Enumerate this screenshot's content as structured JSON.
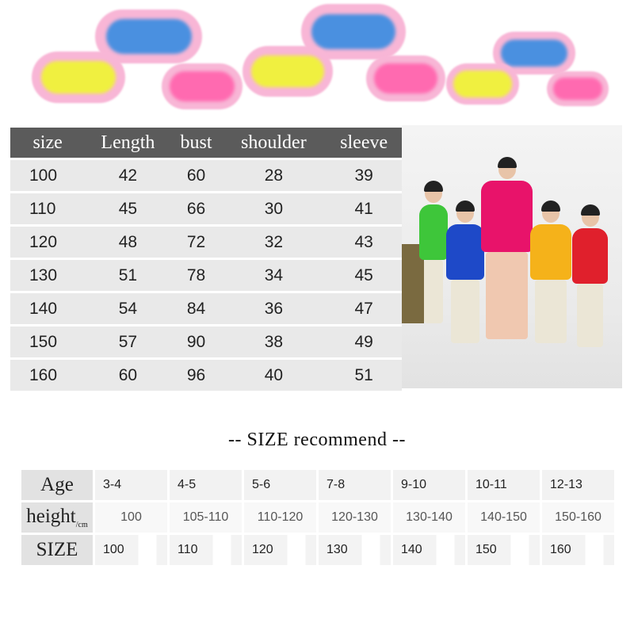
{
  "decor": {
    "clouds": [
      "#4a90e0",
      "#f0f040",
      "#ff6ab0"
    ],
    "halo": "#f8b6d6"
  },
  "size_table": {
    "headers": [
      "size",
      "Length",
      "bust",
      "shoulder",
      "sleeve"
    ],
    "rows": [
      [
        "100",
        "42",
        "60",
        "28",
        "39"
      ],
      [
        "110",
        "45",
        "66",
        "30",
        "41"
      ],
      [
        "120",
        "48",
        "72",
        "32",
        "43"
      ],
      [
        "130",
        "51",
        "78",
        "34",
        "45"
      ],
      [
        "140",
        "54",
        "84",
        "36",
        "47"
      ],
      [
        "150",
        "57",
        "90",
        "38",
        "49"
      ],
      [
        "160",
        "60",
        "96",
        "40",
        "51"
      ]
    ]
  },
  "recommend": {
    "title": "--  SIZE  recommend  --",
    "age_label": "Age",
    "height_label": "height",
    "height_unit": "/cm",
    "size_label": "SIZE",
    "ages": [
      "3-4",
      "4-5",
      "5-6",
      "7-8",
      "9-10",
      "10-11",
      "12-13"
    ],
    "heights": [
      "100",
      "105-110",
      "110-120",
      "120-130",
      "130-140",
      "140-150",
      "150-160"
    ],
    "sizes": [
      "100",
      "110",
      "120",
      "130",
      "140",
      "150",
      "160"
    ]
  },
  "photo": {
    "hoodie_colors": [
      "#3ec63a",
      "#1e49c8",
      "#e8136a",
      "#f5b21a",
      "#e0202c"
    ]
  }
}
